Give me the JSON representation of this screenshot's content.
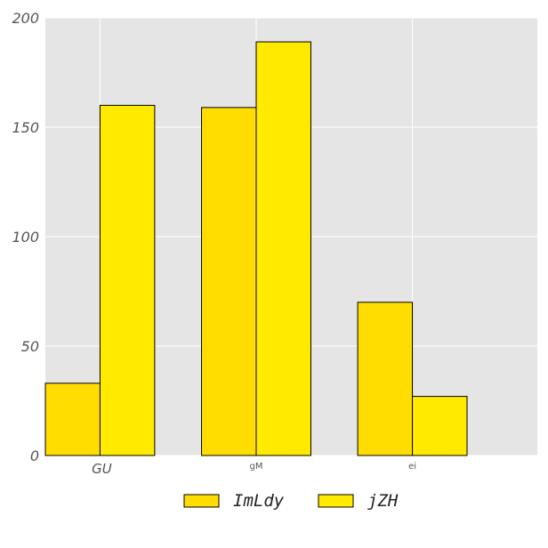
{
  "chart_data": {
    "type": "bar",
    "categories": [
      "GU",
      "gM",
      "ei"
    ],
    "series": [
      {
        "name": "ImLdy",
        "values": [
          33,
          159,
          70
        ],
        "color": "#ffdd00"
      },
      {
        "name": "jZH",
        "values": [
          160,
          189,
          27
        ],
        "color": "#ffea00"
      }
    ],
    "ylim": [
      0,
      200
    ],
    "yticks": [
      0,
      50,
      100,
      150,
      200
    ],
    "grid": true,
    "background": "#e5e5e5",
    "grid_color": "#ffffff",
    "legend_position": "bottom-center"
  }
}
